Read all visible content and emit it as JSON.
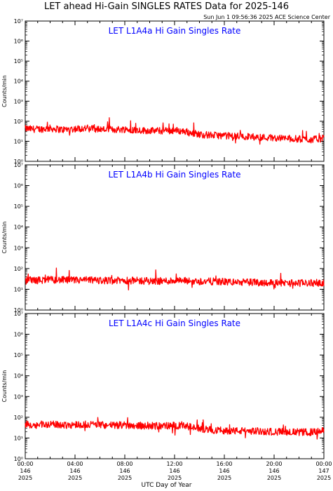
{
  "header": {
    "title": "LET ahead Hi-Gain SINGLES RATES Data for 2025-146",
    "timestamp": "Sun Jun  1 09:56:36 2025 ACE Science Center"
  },
  "colors": {
    "series": "#ff0000",
    "panel_title": "#0000ff"
  },
  "chart_data": [
    {
      "type": "line",
      "title": "LET L1A4a Hi Gain Singles Rate",
      "ylabel": "Counts/min",
      "yscale": "log",
      "ylim": [
        1,
        10000000
      ],
      "yticks": [
        "10⁰",
        "10¹",
        "10²",
        "10³",
        "10⁴",
        "10⁵",
        "10⁶",
        "10⁷"
      ],
      "xlim": [
        0,
        24
      ],
      "series": [
        {
          "x": [
            0,
            1,
            2,
            3,
            4,
            5,
            6,
            7,
            8,
            9,
            10,
            11,
            12,
            13,
            14,
            15,
            16,
            17,
            18,
            19,
            20,
            21,
            22,
            23,
            24
          ],
          "values": [
            42,
            40,
            44,
            38,
            42,
            45,
            40,
            38,
            40,
            36,
            34,
            33,
            35,
            30,
            22,
            20,
            19,
            18,
            17,
            16,
            15,
            14,
            13,
            12,
            14
          ]
        }
      ]
    },
    {
      "type": "line",
      "title": "LET L1A4b Hi Gain Singles Rate",
      "ylabel": "Counts/min",
      "yscale": "log",
      "ylim": [
        1,
        10000000
      ],
      "yticks": [
        "10⁰",
        "10¹",
        "10²",
        "10³",
        "10⁴",
        "10⁵",
        "10⁶",
        "10⁷"
      ],
      "xlim": [
        0,
        24
      ],
      "series": [
        {
          "x": [
            0,
            1,
            2,
            3,
            4,
            5,
            6,
            7,
            8,
            9,
            10,
            11,
            12,
            13,
            14,
            15,
            16,
            17,
            18,
            19,
            20,
            21,
            22,
            23,
            24
          ],
          "values": [
            28,
            27,
            29,
            28,
            27,
            28,
            27,
            26,
            27,
            26,
            25,
            25,
            26,
            25,
            24,
            24,
            23,
            22,
            22,
            21,
            21,
            20,
            20,
            20,
            21
          ]
        }
      ]
    },
    {
      "type": "line",
      "title": "LET L1A4c Hi Gain Singles Rate",
      "ylabel": "Counts/min",
      "yscale": "log",
      "ylim": [
        1,
        10000000
      ],
      "yticks": [
        "10⁰",
        "10¹",
        "10²",
        "10³",
        "10⁴",
        "10⁵",
        "10⁶",
        "10⁷"
      ],
      "xlim": [
        0,
        24
      ],
      "xticks": [
        {
          "time": "00:00",
          "doy": "146",
          "year": "2025"
        },
        {
          "time": "04:00",
          "doy": "146",
          "year": "2025"
        },
        {
          "time": "08:00",
          "doy": "146",
          "year": "2025"
        },
        {
          "time": "12:00",
          "doy": "146",
          "year": "2025"
        },
        {
          "time": "16:00",
          "doy": "146",
          "year": "2025"
        },
        {
          "time": "20:00",
          "doy": "146",
          "year": "2025"
        },
        {
          "time": "00:00",
          "doy": "147",
          "year": "2025"
        }
      ],
      "xlabel": "UTC Day of Year",
      "series": [
        {
          "x": [
            0,
            1,
            2,
            3,
            4,
            5,
            6,
            7,
            8,
            9,
            10,
            11,
            12,
            13,
            14,
            15,
            16,
            17,
            18,
            19,
            20,
            21,
            22,
            23,
            24
          ],
          "values": [
            45,
            43,
            46,
            42,
            44,
            46,
            43,
            41,
            42,
            40,
            39,
            38,
            40,
            36,
            28,
            24,
            23,
            22,
            22,
            21,
            20,
            20,
            19,
            19,
            22
          ]
        }
      ]
    }
  ]
}
